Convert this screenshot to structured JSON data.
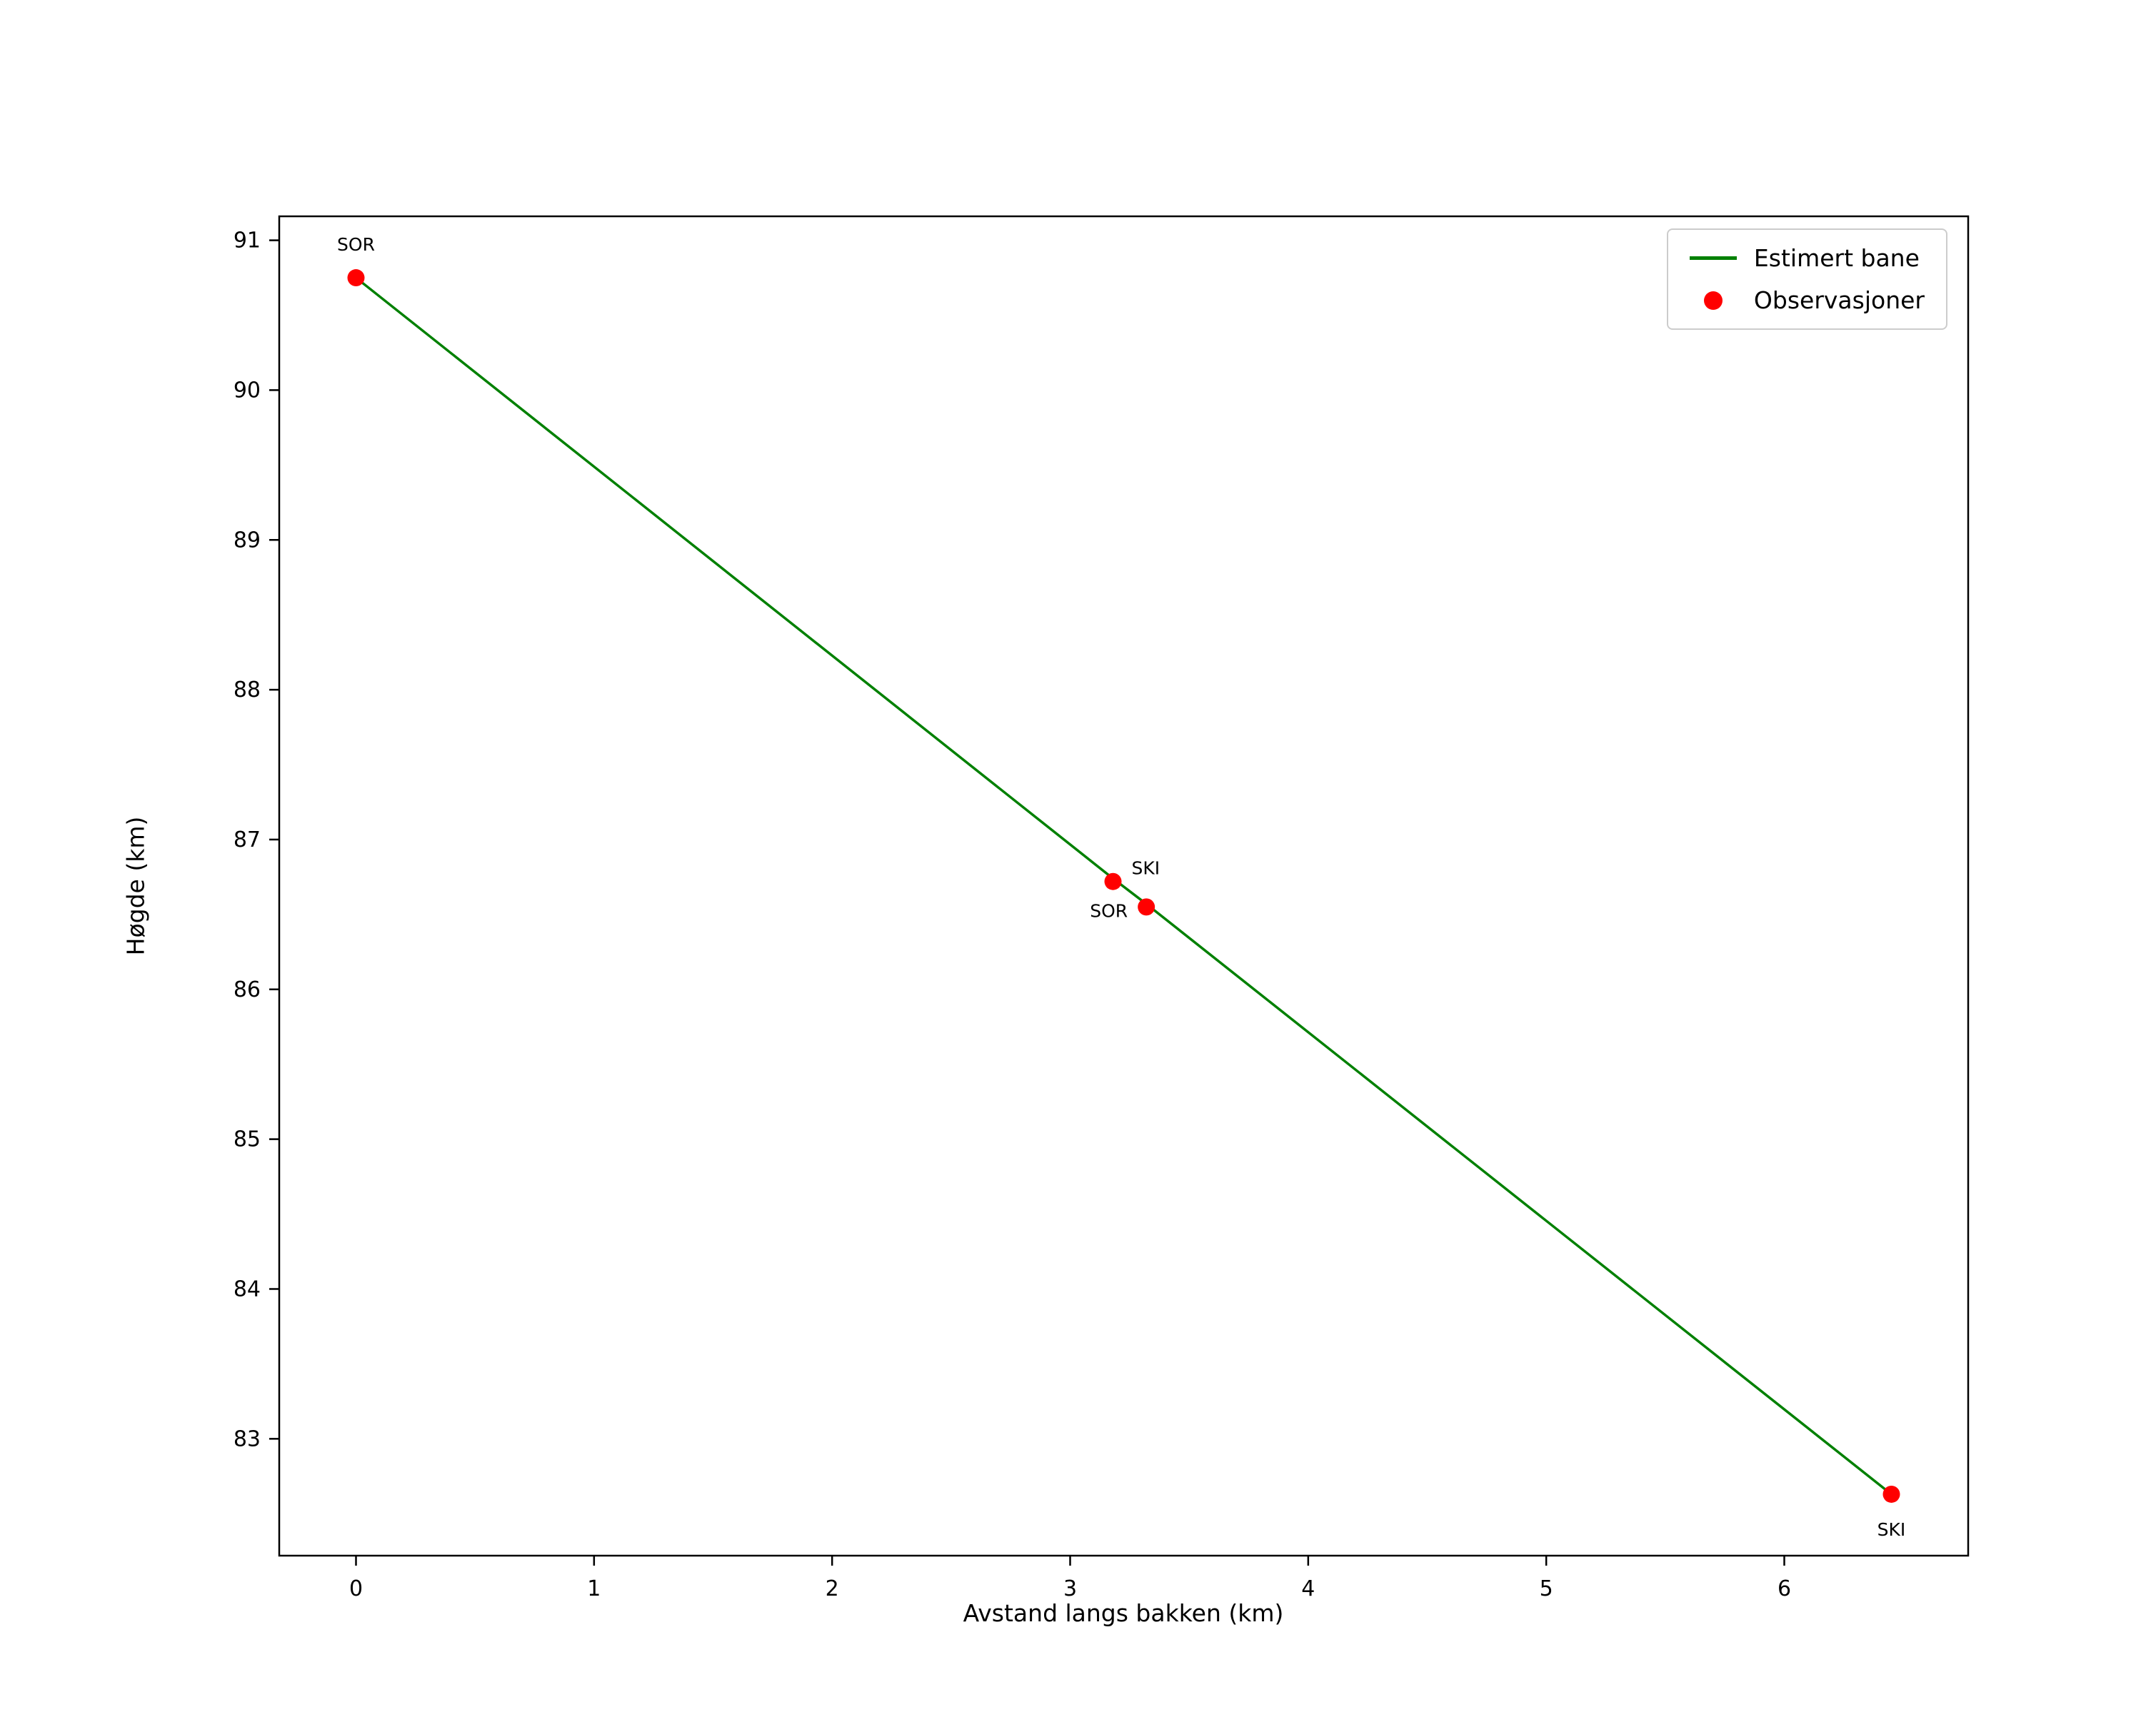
{
  "chart_data": {
    "type": "line",
    "title": "",
    "xlabel": "Avstand langs bakken (km)",
    "ylabel": "Høgde (km)",
    "xlim": [
      -0.3225,
      6.7725
    ],
    "ylim": [
      82.22,
      91.16
    ],
    "x_ticks": [
      0,
      1,
      2,
      3,
      4,
      5,
      6
    ],
    "y_ticks": [
      83,
      84,
      85,
      86,
      87,
      88,
      89,
      90,
      91
    ],
    "grid": false,
    "background": "#ffffff",
    "line_series": {
      "name": "Estimert bane",
      "color": "#008000",
      "points": [
        [
          0,
          90.75
        ],
        [
          3.18,
          86.74
        ],
        [
          3.32,
          86.57
        ],
        [
          6.45,
          82.63
        ]
      ]
    },
    "scatter_series": {
      "name": "Observasjoner",
      "color": "#ff0000",
      "points": [
        {
          "x": 0,
          "y": 90.75,
          "label": "SOR",
          "label_pos": "above"
        },
        {
          "x": 3.18,
          "y": 86.72,
          "label": "SKI",
          "label_pos": "right"
        },
        {
          "x": 3.32,
          "y": 86.55,
          "label": "SOR",
          "label_pos": "left"
        },
        {
          "x": 6.45,
          "y": 82.63,
          "label": "SKI",
          "label_pos": "below"
        }
      ]
    },
    "legend": {
      "position": "top-right",
      "entries": [
        {
          "label": "Estimert bane",
          "marker": "line",
          "color": "#008000"
        },
        {
          "label": "Observasjoner",
          "marker": "dot",
          "color": "#ff0000"
        }
      ]
    }
  }
}
